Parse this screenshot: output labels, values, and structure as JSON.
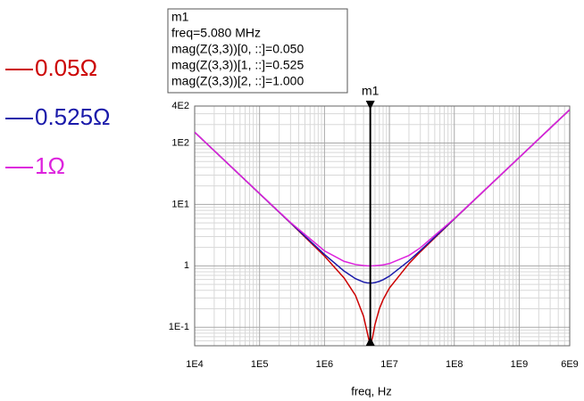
{
  "chart_data": {
    "type": "line",
    "x_label": "freq, Hz",
    "xscale": "log",
    "yscale": "log",
    "grid": true,
    "xlim": [
      10000,
      6000000000
    ],
    "ylim": [
      0.05,
      400
    ],
    "xticks": [
      {
        "value": 10000,
        "label": "1E4"
      },
      {
        "value": 100000,
        "label": "1E5"
      },
      {
        "value": 1000000,
        "label": "1E6"
      },
      {
        "value": 10000000,
        "label": "1E7"
      },
      {
        "value": 100000000,
        "label": "1E8"
      },
      {
        "value": 1000000000,
        "label": "1E9"
      },
      {
        "value": 6000000000,
        "label": "6E9"
      }
    ],
    "yticks": [
      {
        "value": 400,
        "label": "4E2"
      },
      {
        "value": 100,
        "label": "1E2"
      },
      {
        "value": 10,
        "label": "1E1"
      },
      1,
      {
        "value": 0.1,
        "label": "1E-1"
      }
    ],
    "x": [
      10000,
      30000,
      100000,
      300000,
      1000000,
      2000000,
      3000000,
      4000000,
      4500000,
      5080000,
      5500000,
      6000000,
      7000000,
      8000000,
      10000000,
      20000000,
      30000000,
      100000000,
      300000000,
      1000000000,
      3000000000,
      6000000000
    ],
    "series": [
      {
        "name": "0.05Ω",
        "color": "#cc0000",
        "values": [
          150,
          50,
          14.99,
          4.983,
          1.443,
          0.636,
          0.33,
          0.151,
          0.0873,
          0.05,
          0.0685,
          0.111,
          0.199,
          0.282,
          0.434,
          1.088,
          1.695,
          5.797,
          17.44,
          58.12,
          174.4,
          348.7
        ]
      },
      {
        "name": "0.525Ω",
        "color": "#1a1aaa",
        "values": [
          150,
          50,
          15,
          5.011,
          1.535,
          0.823,
          0.618,
          0.544,
          0.53,
          0.525,
          0.527,
          0.534,
          0.559,
          0.594,
          0.679,
          1.207,
          1.773,
          5.821,
          17.45,
          58.12,
          174.4,
          348.7
        ]
      },
      {
        "name": "1Ω",
        "color": "#dd22dd",
        "values": [
          150,
          50,
          15.02,
          5.082,
          1.755,
          1.184,
          1.052,
          1.01,
          1.003,
          1,
          1.001,
          1.005,
          1.018,
          1.038,
          1.089,
          1.476,
          1.967,
          5.883,
          17.47,
          58.13,
          174.4,
          348.7
        ]
      }
    ],
    "marker": {
      "name": "m1",
      "x": 5080000,
      "lines": [
        "freq=5.080 MHz",
        "mag(Z(3,3))[0, ::]=0.050",
        "mag(Z(3,3))[1, ::]=0.525",
        "mag(Z(3,3))[2, ::]=1.000"
      ]
    }
  }
}
